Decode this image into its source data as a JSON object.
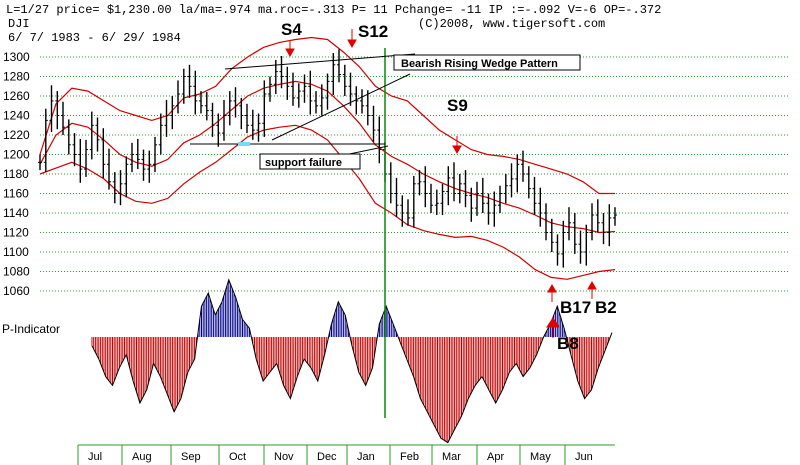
{
  "header": {
    "line1": "L=1/27  price= $1,230.00  la/ma=.974  ma.roc=-.313 P=  11 Pchange= -11 IP  :=-.092 V=-6 OP=-.372",
    "ticker": "DJI",
    "copyright": "(C)2008, www.tigersoft.com",
    "date_range": "6/ 7/ 1983 - 6/ 29/ 1984"
  },
  "indicator_label": "P-Indicator",
  "colors": {
    "candles": "#000000",
    "bands": "#d00000",
    "gridlines": "#2a9d2a",
    "signal_line": "#0a8a0a",
    "p_positive": "#00008b",
    "p_negative": "#c00000",
    "arrows": "#e00000",
    "wedge_lines": "#000000",
    "support_marker": "#7fd7ff"
  },
  "chart_data": {
    "type": "candlestick",
    "title": "DJI",
    "ylim": [
      1040,
      1320
    ],
    "yticks": [
      1060,
      1080,
      1100,
      1120,
      1140,
      1160,
      1180,
      1200,
      1220,
      1240,
      1260,
      1280,
      1300
    ],
    "months": [
      "Jul",
      "Aug",
      "Sep",
      "Oct",
      "Nov",
      "Dec",
      "Jan",
      "Feb",
      "Mar",
      "Apr",
      "May",
      "Jun"
    ],
    "close_series": [
      1192,
      1235,
      1255,
      1240,
      1228,
      1210,
      1200,
      1185,
      1205,
      1230,
      1215,
      1190,
      1172,
      1160,
      1170,
      1190,
      1200,
      1195,
      1185,
      1190,
      1210,
      1230,
      1240,
      1250,
      1262,
      1280,
      1270,
      1255,
      1250,
      1245,
      1230,
      1222,
      1240,
      1255,
      1250,
      1240,
      1230,
      1225,
      1232,
      1262,
      1272,
      1285,
      1280,
      1270,
      1258,
      1265,
      1270,
      1255,
      1250,
      1258,
      1275,
      1292,
      1282,
      1270,
      1262,
      1255,
      1250,
      1240,
      1225,
      1205,
      1180,
      1160,
      1148,
      1140,
      1135,
      1170,
      1172,
      1160,
      1148,
      1150,
      1162,
      1176,
      1160,
      1170,
      1158,
      1145,
      1160,
      1150,
      1140,
      1148,
      1160,
      1168,
      1175,
      1190,
      1180,
      1165,
      1150,
      1140,
      1120,
      1110,
      1098,
      1120,
      1130,
      1108,
      1100,
      1120,
      1138,
      1130,
      1120,
      1135,
      1138
    ],
    "upper_band": [
      1200,
      1252,
      1268,
      1265,
      1255,
      1245,
      1240,
      1235,
      1240,
      1258,
      1262,
      1270,
      1288,
      1300,
      1310,
      1315,
      1318,
      1320,
      1318,
      1305,
      1290,
      1270,
      1260,
      1255,
      1240,
      1225,
      1215,
      1205,
      1200,
      1198,
      1195,
      1190,
      1185,
      1180,
      1172,
      1160,
      1160
    ],
    "lower_band": [
      1180,
      1186,
      1192,
      1185,
      1175,
      1160,
      1152,
      1150,
      1155,
      1170,
      1182,
      1192,
      1205,
      1218,
      1225,
      1228,
      1230,
      1225,
      1215,
      1195,
      1175,
      1150,
      1140,
      1128,
      1122,
      1118,
      1115,
      1116,
      1112,
      1105,
      1095,
      1082,
      1074,
      1072,
      1076,
      1080,
      1082
    ],
    "mid_band": [
      1190,
      1220,
      1232,
      1228,
      1215,
      1200,
      1192,
      1188,
      1195,
      1212,
      1220,
      1232,
      1246,
      1260,
      1268,
      1272,
      1275,
      1272,
      1265,
      1250,
      1232,
      1210,
      1198,
      1190,
      1180,
      1172,
      1165,
      1160,
      1156,
      1150,
      1145,
      1138,
      1130,
      1126,
      1124,
      1120,
      1121
    ],
    "p_indicator": [
      -4,
      -10,
      -18,
      -22,
      -14,
      -8,
      -20,
      -30,
      -24,
      -12,
      -18,
      -26,
      -34,
      -28,
      -16,
      -10,
      14,
      20,
      10,
      16,
      26,
      18,
      8,
      4,
      -10,
      -20,
      -16,
      -12,
      -22,
      -28,
      -18,
      -10,
      -14,
      -20,
      -8,
      6,
      16,
      10,
      -4,
      -16,
      -22,
      -14,
      6,
      14,
      6,
      -2,
      -10,
      -18,
      -28,
      -34,
      -40,
      -46,
      -48,
      -42,
      -36,
      -28,
      -22,
      -18,
      -24,
      -30,
      -24,
      -16,
      -12,
      -18,
      -14,
      -8,
      0,
      6,
      14,
      4,
      -8,
      -20,
      -28,
      -24,
      -14,
      -6,
      2
    ],
    "annotations": [
      {
        "text": "Bearish Rising Wedge Pattern",
        "type": "box"
      },
      {
        "text": "support failure",
        "type": "box"
      },
      {
        "text": "S4",
        "type": "sell-signal"
      },
      {
        "text": "S12",
        "type": "sell-signal"
      },
      {
        "text": "S9",
        "type": "sell-signal"
      },
      {
        "text": "B17",
        "type": "buy-signal"
      },
      {
        "text": "B2",
        "type": "buy-signal"
      },
      {
        "text": "B8",
        "type": "buy-signal"
      }
    ],
    "grid": true
  }
}
